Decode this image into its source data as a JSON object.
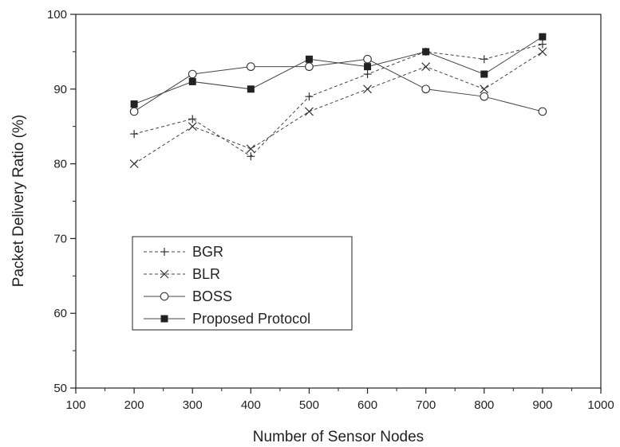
{
  "chart_data": {
    "type": "line",
    "title": "",
    "xlabel": "Number of Sensor Nodes",
    "ylabel": "Packet Delivery Ratio (%)",
    "xlim": [
      100,
      1000
    ],
    "ylim": [
      50,
      100
    ],
    "x_ticks": [
      100,
      200,
      300,
      400,
      500,
      600,
      700,
      800,
      900,
      1000
    ],
    "y_ticks": [
      50,
      60,
      70,
      80,
      90,
      100
    ],
    "grid": false,
    "legend_placement": "lower-left",
    "x": [
      200,
      300,
      400,
      500,
      600,
      700,
      800,
      900
    ],
    "series": [
      {
        "name": "BGR",
        "values": [
          84,
          86,
          81,
          89,
          92,
          95,
          94,
          96
        ],
        "marker": "plus",
        "line": "dashed"
      },
      {
        "name": "BLR",
        "values": [
          80,
          85,
          82,
          87,
          90,
          93,
          90,
          95
        ],
        "marker": "x",
        "line": "dashed"
      },
      {
        "name": "BOSS",
        "values": [
          87,
          92,
          93,
          93,
          94,
          90,
          89,
          87
        ],
        "marker": "circle-open",
        "line": "solid"
      },
      {
        "name": "Proposed Protocol",
        "values": [
          88,
          91,
          90,
          94,
          93,
          95,
          92,
          97
        ],
        "marker": "square-filled",
        "line": "solid"
      }
    ]
  }
}
